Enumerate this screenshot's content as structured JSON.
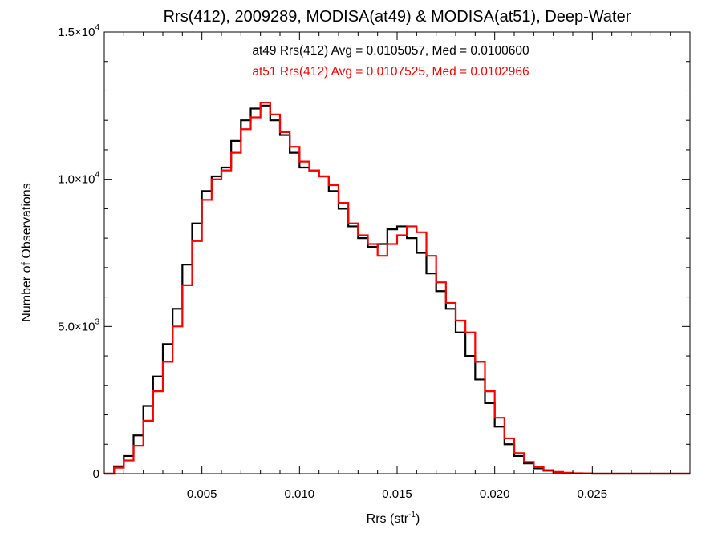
{
  "chart_data": {
    "type": "line",
    "title": "Rrs(412), 2009289, MODISA(at49) & MODISA(at51), Deep-Water",
    "xlabel": "Rrs (str",
    "xlabel_sup": "-1",
    "xlabel_end": ")",
    "ylabel": "Number of Observations",
    "xlim": [
      0.0,
      0.03
    ],
    "ylim": [
      0,
      15000
    ],
    "grid": false,
    "x_ticks": [
      {
        "value": 0.005,
        "label": "0.005"
      },
      {
        "value": 0.01,
        "label": "0.010"
      },
      {
        "value": 0.015,
        "label": "0.015"
      },
      {
        "value": 0.02,
        "label": "0.020"
      },
      {
        "value": 0.025,
        "label": "0.025"
      }
    ],
    "y_ticks": [
      {
        "value": 0,
        "mant": "0",
        "exp": ""
      },
      {
        "value": 5000,
        "mant": "5.0×10",
        "exp": "3"
      },
      {
        "value": 10000,
        "mant": "1.0×10",
        "exp": "4"
      },
      {
        "value": 15000,
        "mant": "1.5×10",
        "exp": "4"
      }
    ],
    "annotations": [
      {
        "text": "at49 Rrs(412) Avg = 0.0105057, Med = 0.0100600",
        "color": "#000000"
      },
      {
        "text": "at51 Rrs(412) Avg = 0.0107525, Med = 0.0102966",
        "color": "#ff0000"
      }
    ],
    "series": [
      {
        "color": "#000000",
        "x": [
          0.0,
          0.0005,
          0.001,
          0.0015,
          0.002,
          0.0025,
          0.003,
          0.0035,
          0.004,
          0.0045,
          0.005,
          0.0055,
          0.006,
          0.0065,
          0.007,
          0.0075,
          0.008,
          0.0085,
          0.009,
          0.0095,
          0.01,
          0.0105,
          0.011,
          0.0115,
          0.012,
          0.0125,
          0.013,
          0.0135,
          0.014,
          0.0145,
          0.015,
          0.0155,
          0.016,
          0.0165,
          0.017,
          0.0175,
          0.018,
          0.0185,
          0.019,
          0.0195,
          0.02,
          0.0205,
          0.021,
          0.0215,
          0.022,
          0.0225,
          0.023,
          0.0235,
          0.024,
          0.0245,
          0.025,
          0.026,
          0.027,
          0.028,
          0.029,
          0.03
        ],
        "y": [
          0,
          250,
          600,
          1300,
          2300,
          3300,
          4400,
          5600,
          7100,
          8500,
          9600,
          10100,
          10400,
          11300,
          12000,
          12400,
          12500,
          12000,
          11500,
          10900,
          10400,
          10300,
          10100,
          9600,
          9000,
          8400,
          8000,
          7700,
          7800,
          8300,
          8400,
          8000,
          7500,
          6800,
          6200,
          5600,
          4800,
          4000,
          3200,
          2400,
          1600,
          1000,
          600,
          350,
          180,
          100,
          50,
          25,
          10,
          5,
          0,
          0,
          0,
          0,
          0,
          0
        ]
      },
      {
        "color": "#ff0000",
        "x": [
          0.0,
          0.0005,
          0.001,
          0.0015,
          0.002,
          0.0025,
          0.003,
          0.0035,
          0.004,
          0.0045,
          0.005,
          0.0055,
          0.006,
          0.0065,
          0.007,
          0.0075,
          0.008,
          0.0085,
          0.009,
          0.0095,
          0.01,
          0.0105,
          0.011,
          0.0115,
          0.012,
          0.0125,
          0.013,
          0.0135,
          0.014,
          0.0145,
          0.015,
          0.0155,
          0.016,
          0.0165,
          0.017,
          0.0175,
          0.018,
          0.0185,
          0.019,
          0.0195,
          0.02,
          0.0205,
          0.021,
          0.0215,
          0.022,
          0.0225,
          0.023,
          0.0235,
          0.024,
          0.0245,
          0.025,
          0.026,
          0.027,
          0.028,
          0.029,
          0.03
        ],
        "y": [
          0,
          200,
          450,
          950,
          1800,
          2800,
          3800,
          5000,
          6400,
          7900,
          9300,
          10000,
          10300,
          10900,
          11700,
          12100,
          12600,
          12200,
          11600,
          11100,
          10600,
          10300,
          10100,
          9800,
          9200,
          8500,
          8100,
          7800,
          7400,
          7800,
          8100,
          8400,
          8200,
          7400,
          6500,
          5800,
          5200,
          4800,
          3800,
          2800,
          1900,
          1200,
          700,
          400,
          220,
          120,
          60,
          30,
          15,
          8,
          0,
          0,
          0,
          0,
          0,
          0
        ]
      }
    ]
  }
}
